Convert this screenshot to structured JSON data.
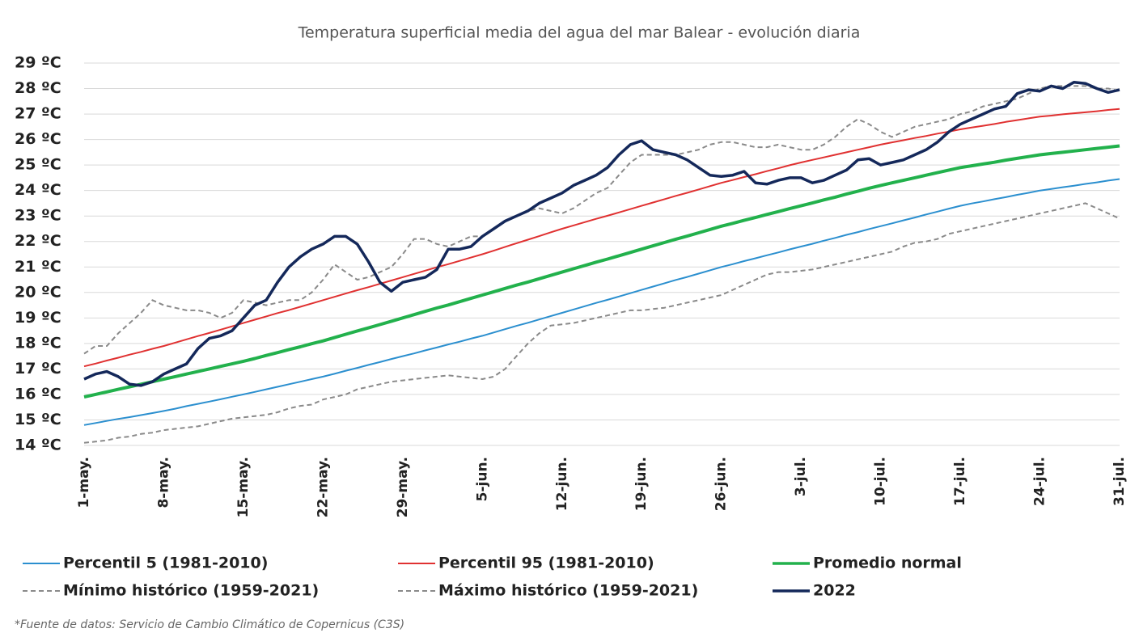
{
  "chart_data": {
    "type": "line",
    "title": "Temperatura superficial media del agua del mar Balear - evolución diaria",
    "footnote": "*Fuente de datos: Servicio de Cambio Climático de Copernicus (C3S)",
    "categories": [
      "1-may.",
      null,
      null,
      null,
      null,
      null,
      null,
      "8-may.",
      null,
      null,
      null,
      null,
      null,
      null,
      "15-may.",
      null,
      null,
      null,
      null,
      null,
      null,
      "22-may.",
      null,
      null,
      null,
      null,
      null,
      null,
      "29-may.",
      null,
      null,
      null,
      null,
      null,
      null,
      "5-jun.",
      null,
      null,
      null,
      null,
      null,
      null,
      "12-jun.",
      null,
      null,
      null,
      null,
      null,
      null,
      "19-jun.",
      null,
      null,
      null,
      null,
      null,
      null,
      "26-jun.",
      null,
      null,
      null,
      null,
      null,
      null,
      "3-jul.",
      null,
      null,
      null,
      null,
      null,
      null,
      "10-jul.",
      null,
      null,
      null,
      null,
      null,
      null,
      "17-jul.",
      null,
      null,
      null,
      null,
      null,
      null,
      "24-jul.",
      null,
      null,
      null,
      null,
      null,
      null,
      "31-jul."
    ],
    "ylim": [
      14,
      29
    ],
    "yticks": [
      {
        "value": 14,
        "label": "14 ºC"
      },
      {
        "value": 15,
        "label": "15 ºC"
      },
      {
        "value": 16,
        "label": "16 ºC"
      },
      {
        "value": 17,
        "label": "17 ºC"
      },
      {
        "value": 18,
        "label": "18 ºC"
      },
      {
        "value": 19,
        "label": "19 ºC"
      },
      {
        "value": 20,
        "label": "20 ºC"
      },
      {
        "value": 21,
        "label": "21 ºC"
      },
      {
        "value": 22,
        "label": "22 ºC"
      },
      {
        "value": 23,
        "label": "23 ºC"
      },
      {
        "value": 24,
        "label": "24 ºC"
      },
      {
        "value": 25,
        "label": "25 ºC"
      },
      {
        "value": 26,
        "label": "26 ºC"
      },
      {
        "value": 27,
        "label": "27 ºC"
      },
      {
        "value": 28,
        "label": "28 ºC"
      },
      {
        "value": 29,
        "label": "29 ºC"
      }
    ],
    "grid": true,
    "series": [
      {
        "name": "Percentil 5 (1981-2010)",
        "color": "#2b8fcf",
        "width": 2,
        "dashed": false,
        "values": [
          14.8,
          14.88,
          14.96,
          15.04,
          15.11,
          15.19,
          15.27,
          15.35,
          15.44,
          15.54,
          15.63,
          15.72,
          15.81,
          15.91,
          16.0,
          16.1,
          16.2,
          16.3,
          16.4,
          16.5,
          16.6,
          16.7,
          16.81,
          16.93,
          17.04,
          17.16,
          17.27,
          17.39,
          17.5,
          17.61,
          17.73,
          17.84,
          17.96,
          18.07,
          18.19,
          18.3,
          18.43,
          18.56,
          18.69,
          18.81,
          18.94,
          19.07,
          19.2,
          19.33,
          19.46,
          19.59,
          19.71,
          19.84,
          19.97,
          20.1,
          20.23,
          20.36,
          20.49,
          20.61,
          20.74,
          20.87,
          21.0,
          21.11,
          21.23,
          21.34,
          21.46,
          21.57,
          21.69,
          21.8,
          21.91,
          22.03,
          22.14,
          22.26,
          22.37,
          22.49,
          22.6,
          22.71,
          22.83,
          22.94,
          23.06,
          23.17,
          23.29,
          23.4,
          23.49,
          23.57,
          23.66,
          23.74,
          23.83,
          23.91,
          24.0,
          24.06,
          24.13,
          24.19,
          24.26,
          24.32,
          24.39,
          24.45
        ]
      },
      {
        "name": "Percentil 95 (1981-2010)",
        "color": "#e03131",
        "width": 2,
        "dashed": false,
        "values": [
          17.1,
          17.21,
          17.33,
          17.44,
          17.56,
          17.67,
          17.79,
          17.9,
          18.03,
          18.16,
          18.29,
          18.41,
          18.54,
          18.67,
          18.8,
          18.93,
          19.06,
          19.19,
          19.31,
          19.44,
          19.57,
          19.7,
          19.83,
          19.96,
          20.09,
          20.21,
          20.34,
          20.47,
          20.6,
          20.73,
          20.86,
          20.99,
          21.11,
          21.24,
          21.37,
          21.5,
          21.64,
          21.79,
          21.93,
          22.07,
          22.21,
          22.36,
          22.5,
          22.63,
          22.76,
          22.89,
          23.01,
          23.14,
          23.27,
          23.4,
          23.53,
          23.66,
          23.79,
          23.91,
          24.04,
          24.17,
          24.3,
          24.41,
          24.53,
          24.64,
          24.76,
          24.87,
          24.99,
          25.1,
          25.2,
          25.3,
          25.4,
          25.5,
          25.6,
          25.7,
          25.8,
          25.89,
          25.97,
          26.06,
          26.14,
          26.23,
          26.31,
          26.4,
          26.47,
          26.54,
          26.61,
          26.69,
          26.76,
          26.83,
          26.9,
          26.94,
          26.99,
          27.03,
          27.07,
          27.11,
          27.16,
          27.2
        ]
      },
      {
        "name": "Promedio normal",
        "color": "#22b14c",
        "width": 4,
        "dashed": false,
        "values": [
          15.9,
          16.0,
          16.1,
          16.2,
          16.3,
          16.4,
          16.5,
          16.6,
          16.7,
          16.8,
          16.9,
          17.0,
          17.1,
          17.2,
          17.3,
          17.41,
          17.53,
          17.64,
          17.76,
          17.87,
          17.99,
          18.1,
          18.23,
          18.36,
          18.49,
          18.61,
          18.74,
          18.87,
          19.0,
          19.13,
          19.26,
          19.39,
          19.51,
          19.64,
          19.77,
          19.9,
          20.03,
          20.16,
          20.29,
          20.41,
          20.54,
          20.67,
          20.8,
          20.93,
          21.06,
          21.19,
          21.31,
          21.44,
          21.57,
          21.7,
          21.83,
          21.96,
          22.09,
          22.21,
          22.34,
          22.47,
          22.6,
          22.71,
          22.83,
          22.94,
          23.06,
          23.17,
          23.29,
          23.4,
          23.51,
          23.63,
          23.74,
          23.86,
          23.97,
          24.09,
          24.2,
          24.3,
          24.4,
          24.5,
          24.6,
          24.7,
          24.8,
          24.9,
          24.97,
          25.04,
          25.11,
          25.19,
          25.26,
          25.33,
          25.4,
          25.45,
          25.5,
          25.55,
          25.6,
          25.65,
          25.7,
          25.75
        ]
      },
      {
        "name": "Mínimo histórico (1959-2021)",
        "color": "#8a8a8a",
        "width": 2,
        "dashed": true,
        "values": [
          14.1,
          14.15,
          14.2,
          14.3,
          14.35,
          14.45,
          14.5,
          14.6,
          14.65,
          14.7,
          14.75,
          14.85,
          14.95,
          15.05,
          15.1,
          15.15,
          15.2,
          15.3,
          15.45,
          15.55,
          15.6,
          15.8,
          15.9,
          16.0,
          16.2,
          16.3,
          16.4,
          16.5,
          16.55,
          16.6,
          16.65,
          16.7,
          16.75,
          16.7,
          16.65,
          16.6,
          16.7,
          17.0,
          17.5,
          18.0,
          18.4,
          18.7,
          18.75,
          18.8,
          18.9,
          19.0,
          19.1,
          19.2,
          19.3,
          19.3,
          19.35,
          19.4,
          19.5,
          19.6,
          19.7,
          19.8,
          19.9,
          20.1,
          20.3,
          20.5,
          20.7,
          20.8,
          20.8,
          20.85,
          20.9,
          21.0,
          21.1,
          21.2,
          21.3,
          21.4,
          21.5,
          21.6,
          21.8,
          21.95,
          22.0,
          22.1,
          22.3,
          22.4,
          22.5,
          22.6,
          22.7,
          22.8,
          22.9,
          23.0,
          23.1,
          23.2,
          23.3,
          23.4,
          23.5,
          23.3,
          23.1,
          22.9
        ]
      },
      {
        "name": "Máximo histórico (1959-2021)",
        "color": "#8a8a8a",
        "width": 2,
        "dashed": true,
        "values": [
          17.6,
          17.9,
          17.9,
          18.4,
          18.8,
          19.2,
          19.7,
          19.5,
          19.4,
          19.3,
          19.3,
          19.2,
          19.0,
          19.2,
          19.7,
          19.6,
          19.5,
          19.6,
          19.7,
          19.7,
          20.0,
          20.5,
          21.1,
          20.8,
          20.5,
          20.6,
          20.8,
          21.0,
          21.5,
          22.1,
          22.1,
          21.9,
          21.8,
          22.0,
          22.2,
          22.2,
          22.5,
          22.8,
          23.0,
          23.2,
          23.3,
          23.2,
          23.1,
          23.3,
          23.6,
          23.9,
          24.1,
          24.6,
          25.1,
          25.4,
          25.4,
          25.4,
          25.4,
          25.5,
          25.6,
          25.8,
          25.9,
          25.9,
          25.8,
          25.7,
          25.7,
          25.8,
          25.7,
          25.6,
          25.6,
          25.8,
          26.1,
          26.5,
          26.8,
          26.6,
          26.3,
          26.1,
          26.3,
          26.5,
          26.6,
          26.7,
          26.8,
          27.0,
          27.1,
          27.3,
          27.4,
          27.5,
          27.6,
          27.8,
          28.0,
          28.1,
          28.1,
          28.1,
          28.1,
          28.0,
          28.0,
          27.9
        ]
      },
      {
        "name": "2022",
        "color": "#14285a",
        "width": 3.5,
        "dashed": false,
        "values": [
          16.6,
          16.8,
          16.9,
          16.7,
          16.4,
          16.35,
          16.5,
          16.8,
          17.0,
          17.2,
          17.8,
          18.2,
          18.3,
          18.5,
          19.0,
          19.5,
          19.7,
          20.4,
          21.0,
          21.4,
          21.7,
          21.9,
          22.2,
          22.2,
          21.9,
          21.2,
          20.4,
          20.05,
          20.4,
          20.5,
          20.6,
          20.9,
          21.7,
          21.7,
          21.8,
          22.2,
          22.5,
          22.8,
          23.0,
          23.2,
          23.5,
          23.7,
          23.9,
          24.2,
          24.4,
          24.6,
          24.9,
          25.4,
          25.8,
          25.95,
          25.6,
          25.5,
          25.4,
          25.2,
          24.9,
          24.6,
          24.55,
          24.6,
          24.75,
          24.3,
          24.25,
          24.4,
          24.5,
          24.5,
          24.3,
          24.4,
          24.6,
          24.8,
          25.2,
          25.25,
          25.0,
          25.1,
          25.2,
          25.4,
          25.6,
          25.9,
          26.3,
          26.6,
          26.8,
          27.0,
          27.2,
          27.3,
          27.8,
          27.95,
          27.9,
          28.1,
          28.0,
          28.25,
          28.2,
          28.0,
          27.85,
          27.95
        ]
      }
    ]
  }
}
